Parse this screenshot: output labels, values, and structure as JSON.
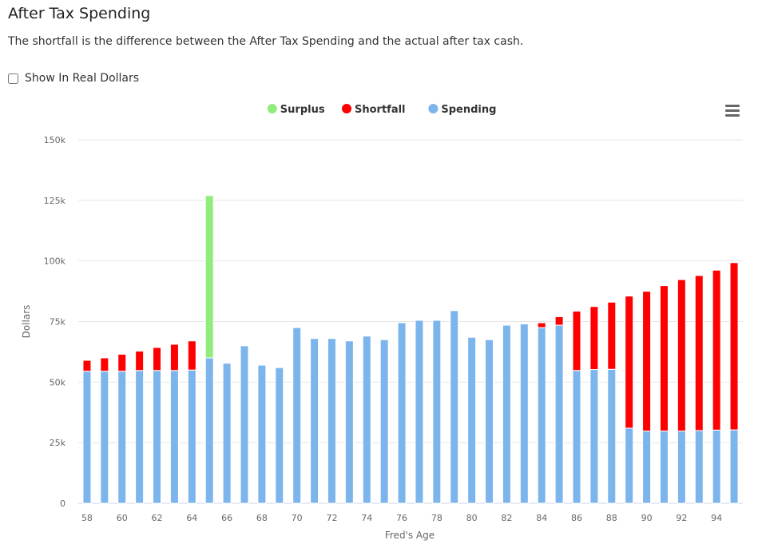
{
  "header": {
    "title": "After Tax Spending",
    "subtitle": "The shortfall is the difference between the After Tax Spending and the actual after tax cash."
  },
  "options": {
    "real_dollars_label": "Show In Real Dollars",
    "real_dollars_checked": false
  },
  "chart_menu_icon": "hamburger-menu-icon",
  "chart_data": {
    "type": "bar",
    "stacked": true,
    "xlabel": "Fred's Age",
    "ylabel": "Dollars",
    "ylim": [
      0,
      150000
    ],
    "yticks": [
      0,
      25000,
      50000,
      75000,
      100000,
      125000,
      150000
    ],
    "ytick_labels": [
      "0",
      "25k",
      "50k",
      "75k",
      "100k",
      "125k",
      "150k"
    ],
    "xtick_labels": [
      "58",
      "60",
      "62",
      "64",
      "66",
      "68",
      "70",
      "72",
      "74",
      "76",
      "78",
      "80",
      "82",
      "84",
      "86",
      "88",
      "90",
      "92",
      "94"
    ],
    "grid": true,
    "legend_position": "top-center",
    "categories": [
      58,
      59,
      60,
      61,
      62,
      63,
      64,
      65,
      66,
      67,
      68,
      69,
      70,
      71,
      72,
      73,
      74,
      75,
      76,
      77,
      78,
      79,
      80,
      81,
      82,
      83,
      84,
      85,
      86,
      87,
      88,
      89,
      90,
      91,
      92,
      93,
      94,
      95
    ],
    "series": [
      {
        "name": "Surplus",
        "color": "#90ed7d",
        "values": [
          0,
          0,
          0,
          0,
          0,
          0,
          0,
          67000,
          0,
          0,
          0,
          0,
          0,
          0,
          0,
          0,
          0,
          0,
          0,
          0,
          0,
          0,
          0,
          0,
          0,
          0,
          0,
          0,
          0,
          0,
          0,
          0,
          0,
          0,
          0,
          0,
          0,
          0
        ]
      },
      {
        "name": "Shortfall",
        "color": "#ff0000",
        "values": [
          4500,
          5500,
          7000,
          8000,
          9500,
          10800,
          12000,
          0,
          0,
          0,
          0,
          0,
          0,
          0,
          0,
          0,
          0,
          0,
          0,
          0,
          0,
          0,
          0,
          0,
          0,
          0,
          2000,
          3500,
          24500,
          26000,
          27700,
          54500,
          57700,
          60000,
          62500,
          64000,
          66000,
          69000
        ]
      },
      {
        "name": "Spending",
        "color": "#7cb5ec",
        "values": [
          54500,
          54500,
          54500,
          54800,
          54800,
          54800,
          55000,
          60000,
          57800,
          65000,
          57000,
          56000,
          72500,
          68000,
          68000,
          67000,
          69000,
          67500,
          74500,
          75500,
          75500,
          79500,
          68500,
          67500,
          73500,
          74000,
          72500,
          73500,
          54800,
          55200,
          55300,
          31000,
          29800,
          29800,
          29800,
          30000,
          30200,
          30300
        ]
      }
    ]
  }
}
